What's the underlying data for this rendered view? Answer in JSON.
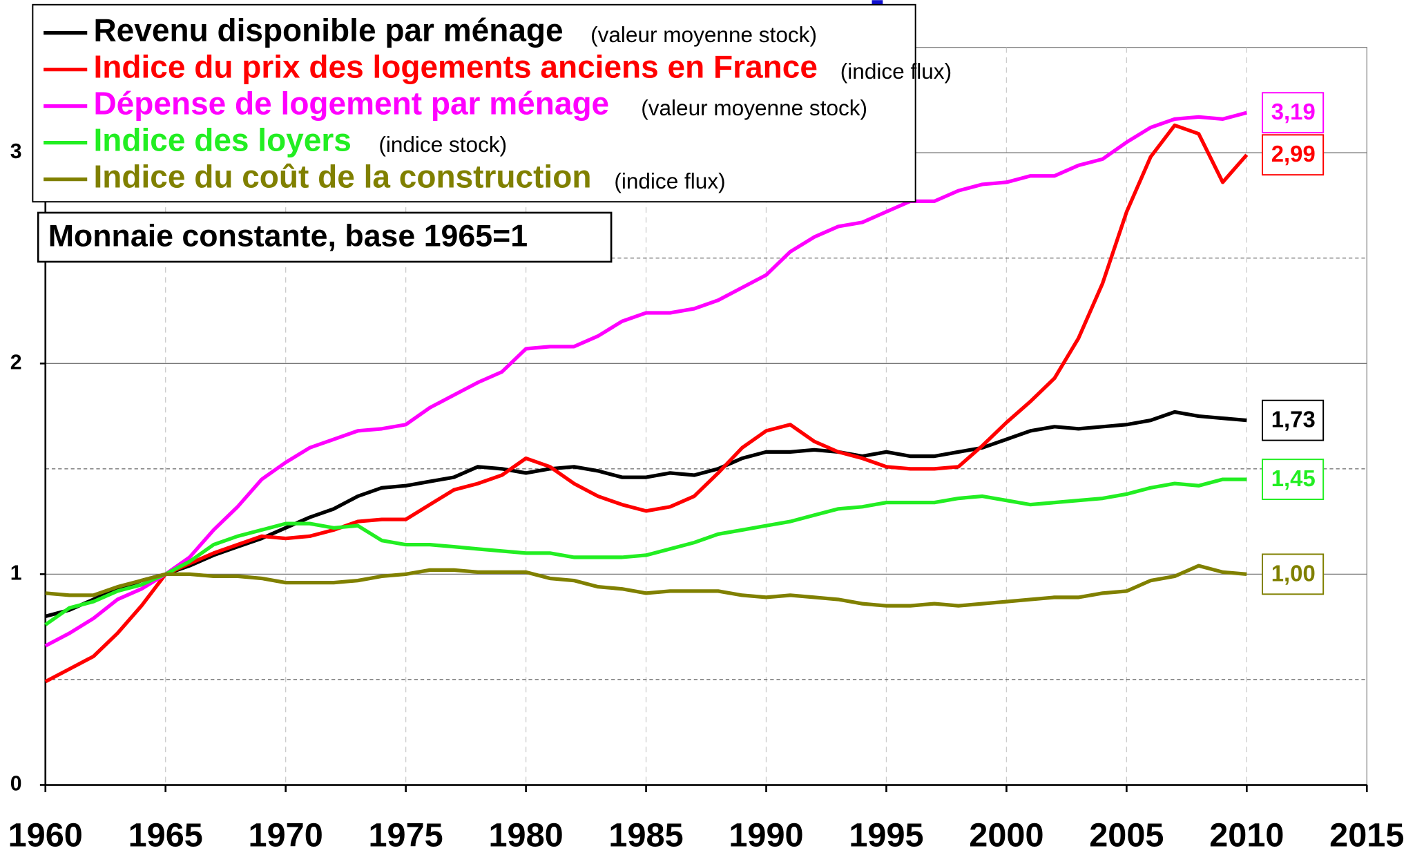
{
  "chart_data": {
    "type": "line",
    "subtitle": "Monnaie constante, base 1965=1",
    "x": [
      1960,
      1961,
      1962,
      1963,
      1964,
      1965,
      1966,
      1967,
      1968,
      1969,
      1970,
      1971,
      1972,
      1973,
      1974,
      1975,
      1976,
      1977,
      1978,
      1979,
      1980,
      1981,
      1982,
      1983,
      1984,
      1985,
      1986,
      1987,
      1988,
      1989,
      1990,
      1991,
      1992,
      1993,
      1994,
      1995,
      1996,
      1997,
      1998,
      1999,
      2000,
      2001,
      2002,
      2003,
      2004,
      2005,
      2006,
      2007,
      2008,
      2009,
      2010
    ],
    "xlim": [
      1960,
      2015
    ],
    "xticks": [
      1960,
      1965,
      1970,
      1975,
      1980,
      1985,
      1990,
      1995,
      2000,
      2005,
      2010,
      2015
    ],
    "ylim": [
      0,
      3.5
    ],
    "yticks": [
      0,
      1,
      2,
      3
    ],
    "yticks_minor": [
      0.5,
      1.5,
      2.5
    ],
    "grid": true,
    "series": [
      {
        "name": "Revenu disponible par ménage",
        "note": "(valeur moyenne stock)",
        "color": "#000000",
        "end_label": "1,73",
        "values": [
          0.8,
          0.83,
          0.88,
          0.93,
          0.97,
          1.0,
          1.04,
          1.09,
          1.13,
          1.17,
          1.22,
          1.27,
          1.31,
          1.37,
          1.41,
          1.42,
          1.44,
          1.46,
          1.51,
          1.5,
          1.48,
          1.5,
          1.51,
          1.49,
          1.46,
          1.46,
          1.48,
          1.47,
          1.5,
          1.55,
          1.58,
          1.58,
          1.59,
          1.58,
          1.56,
          1.58,
          1.56,
          1.56,
          1.58,
          1.6,
          1.64,
          1.68,
          1.7,
          1.69,
          1.7,
          1.71,
          1.73,
          1.77,
          1.75,
          1.74,
          1.73
        ]
      },
      {
        "name": "Indice du prix des logements anciens en France",
        "note": "(indice flux)",
        "color": "#ff0000",
        "end_label": "2,99",
        "values": [
          0.49,
          0.55,
          0.61,
          0.72,
          0.85,
          1.0,
          1.05,
          1.1,
          1.14,
          1.18,
          1.17,
          1.18,
          1.21,
          1.25,
          1.26,
          1.26,
          1.33,
          1.4,
          1.43,
          1.47,
          1.55,
          1.51,
          1.43,
          1.37,
          1.33,
          1.3,
          1.32,
          1.37,
          1.48,
          1.6,
          1.68,
          1.71,
          1.63,
          1.58,
          1.55,
          1.51,
          1.5,
          1.5,
          1.51,
          1.61,
          1.72,
          1.82,
          1.93,
          2.12,
          2.38,
          2.72,
          2.98,
          3.13,
          3.09,
          2.86,
          2.99
        ]
      },
      {
        "name": "Dépense de logement par ménage",
        "note": "(valeur moyenne stock)",
        "color": "#ff00ff",
        "end_label": "3,19",
        "values": [
          0.66,
          0.72,
          0.79,
          0.88,
          0.93,
          1.0,
          1.08,
          1.21,
          1.32,
          1.45,
          1.53,
          1.6,
          1.64,
          1.68,
          1.69,
          1.71,
          1.79,
          1.85,
          1.91,
          1.96,
          2.07,
          2.08,
          2.08,
          2.13,
          2.2,
          2.24,
          2.24,
          2.26,
          2.3,
          2.36,
          2.42,
          2.53,
          2.6,
          2.65,
          2.67,
          2.72,
          2.77,
          2.77,
          2.82,
          2.85,
          2.86,
          2.89,
          2.89,
          2.94,
          2.97,
          3.05,
          3.12,
          3.16,
          3.17,
          3.16,
          3.19
        ]
      },
      {
        "name": "Indice des loyers",
        "note": "(indice stock)",
        "color": "#22ee22",
        "end_label": "1,45",
        "values": [
          0.76,
          0.84,
          0.87,
          0.92,
          0.95,
          1.0,
          1.06,
          1.14,
          1.18,
          1.21,
          1.24,
          1.24,
          1.22,
          1.23,
          1.16,
          1.14,
          1.14,
          1.13,
          1.12,
          1.11,
          1.1,
          1.1,
          1.08,
          1.08,
          1.08,
          1.09,
          1.12,
          1.15,
          1.19,
          1.21,
          1.23,
          1.25,
          1.28,
          1.31,
          1.32,
          1.34,
          1.34,
          1.34,
          1.36,
          1.37,
          1.35,
          1.33,
          1.34,
          1.35,
          1.36,
          1.38,
          1.41,
          1.43,
          1.42,
          1.45,
          1.45
        ]
      },
      {
        "name": "Indice du coût de la construction",
        "note": "(indice flux)",
        "color": "#808000",
        "end_label": "1,00",
        "values": [
          0.91,
          0.9,
          0.9,
          0.94,
          0.97,
          1.0,
          1.0,
          0.99,
          0.99,
          0.98,
          0.96,
          0.96,
          0.96,
          0.97,
          0.99,
          1.0,
          1.02,
          1.02,
          1.01,
          1.01,
          1.01,
          0.98,
          0.97,
          0.94,
          0.93,
          0.91,
          0.92,
          0.92,
          0.92,
          0.9,
          0.89,
          0.9,
          0.89,
          0.88,
          0.86,
          0.85,
          0.85,
          0.86,
          0.85,
          0.86,
          0.87,
          0.88,
          0.89,
          0.89,
          0.91,
          0.92,
          0.97,
          0.99,
          1.04,
          1.01,
          1.0
        ]
      }
    ]
  }
}
